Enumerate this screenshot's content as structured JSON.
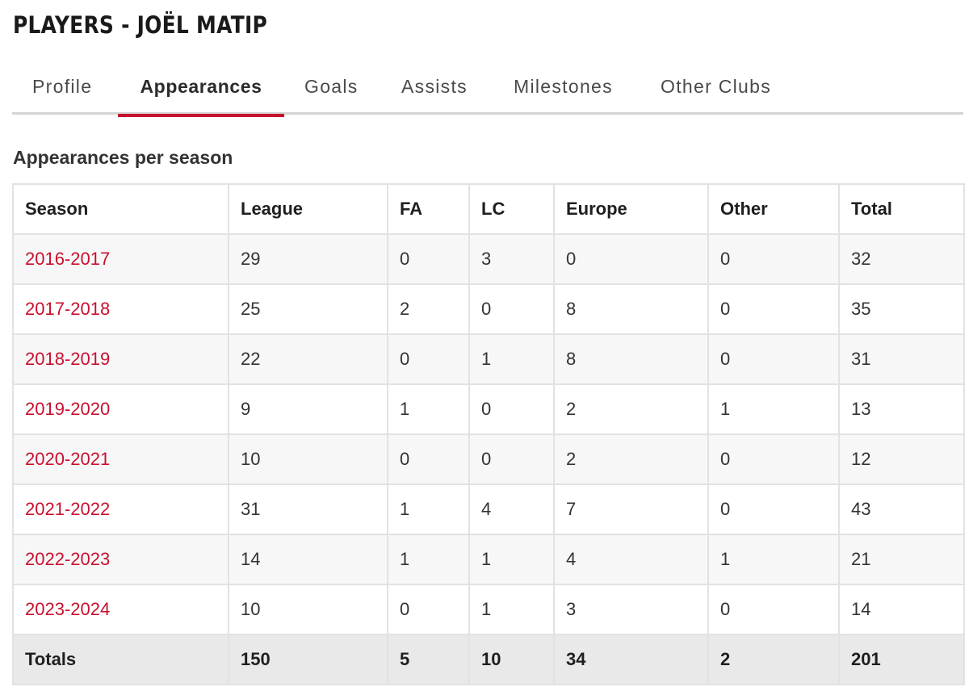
{
  "page": {
    "title": "PLAYERS - JOËL MATIP"
  },
  "tabs": [
    {
      "label": "Profile"
    },
    {
      "label": "Appearances"
    },
    {
      "label": "Goals"
    },
    {
      "label": "Assists"
    },
    {
      "label": "Milestones"
    },
    {
      "label": "Other Clubs"
    }
  ],
  "active_tab": "Appearances",
  "section": {
    "title": "Appearances per season"
  },
  "table": {
    "headers": [
      "Season",
      "League",
      "FA",
      "LC",
      "Europe",
      "Other",
      "Total"
    ],
    "rows": [
      [
        "2016-2017",
        "29",
        "0",
        "3",
        "0",
        "0",
        "32"
      ],
      [
        "2017-2018",
        "25",
        "2",
        "0",
        "8",
        "0",
        "35"
      ],
      [
        "2018-2019",
        "22",
        "0",
        "1",
        "8",
        "0",
        "31"
      ],
      [
        "2019-2020",
        "9",
        "1",
        "0",
        "2",
        "1",
        "13"
      ],
      [
        "2020-2021",
        "10",
        "0",
        "0",
        "2",
        "0",
        "12"
      ],
      [
        "2021-2022",
        "31",
        "1",
        "4",
        "7",
        "0",
        "43"
      ],
      [
        "2022-2023",
        "14",
        "1",
        "1",
        "4",
        "1",
        "21"
      ],
      [
        "2023-2024",
        "10",
        "0",
        "1",
        "3",
        "0",
        "14"
      ]
    ],
    "totals": [
      "Totals",
      "150",
      "5",
      "10",
      "34",
      "2",
      "201"
    ]
  },
  "colors": {
    "accent": "#c8102e",
    "tab_underline": "#d4d4d4",
    "row_stripe": "#f7f7f7",
    "totals_bg": "#e9e9e9",
    "border": "#e2e2e2"
  }
}
